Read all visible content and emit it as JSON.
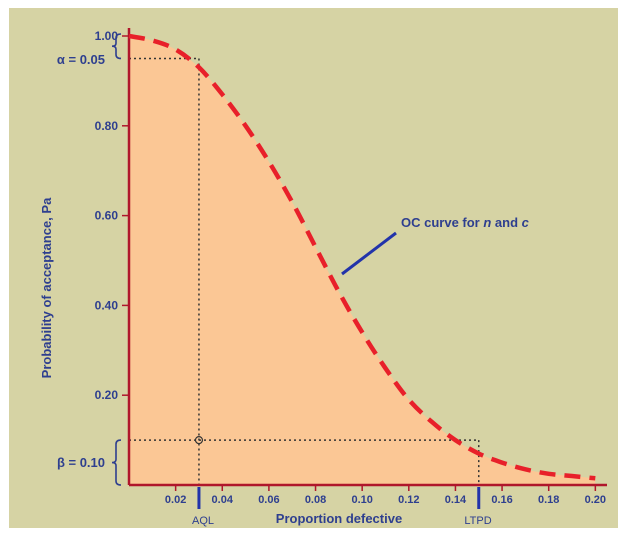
{
  "chart_data": {
    "type": "line",
    "title": "",
    "xlabel": "Proportion defective",
    "ylabel": "Probability of acceptance, Pa",
    "xlim": [
      0,
      0.205
    ],
    "ylim": [
      0,
      1.0
    ],
    "x_ticks": [
      "0.02",
      "0.04",
      "0.06",
      "0.08",
      "0.10",
      "0.12",
      "0.14",
      "0.16",
      "0.18",
      "0.20"
    ],
    "y_ticks": [
      "0.20",
      "0.40",
      "0.60",
      "0.80",
      "1.00"
    ],
    "series": [
      {
        "name": "OC curve for n and c",
        "line_style": "dashed",
        "color": "#e8202a",
        "fill": "#fbc795",
        "x": [
          0.0,
          0.01,
          0.02,
          0.03,
          0.04,
          0.05,
          0.06,
          0.07,
          0.08,
          0.09,
          0.1,
          0.11,
          0.12,
          0.13,
          0.14,
          0.15,
          0.16,
          0.17,
          0.18,
          0.19,
          0.2
        ],
        "y": [
          1.0,
          0.99,
          0.97,
          0.93,
          0.87,
          0.8,
          0.72,
          0.63,
          0.53,
          0.43,
          0.34,
          0.26,
          0.19,
          0.14,
          0.1,
          0.07,
          0.05,
          0.035,
          0.025,
          0.02,
          0.015
        ]
      }
    ],
    "annotations": {
      "alpha_label": "α = 0.05",
      "beta_label": "β = 0.10",
      "aql_label": "AQL",
      "ltpd_label": "LTPD",
      "curve_label_pre": "OC curve for ",
      "curve_label_n": "n",
      "curve_label_mid": " and ",
      "curve_label_c": "c",
      "aql_x": 0.03,
      "aql_y": 0.95,
      "ltpd_x": 0.15,
      "ltpd_y": 0.1
    },
    "colors": {
      "background": "#d6d3a4",
      "axis": "#b0162b",
      "text": "#2e3f8f",
      "curve": "#e8202a",
      "fill": "#fbc795"
    },
    "grid": false,
    "legend": "none"
  }
}
